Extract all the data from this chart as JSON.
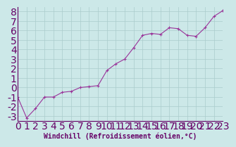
{
  "x": [
    0,
    1,
    2,
    3,
    4,
    5,
    6,
    7,
    8,
    9,
    10,
    11,
    12,
    13,
    14,
    15,
    16,
    17,
    18,
    19,
    20,
    21,
    22,
    23
  ],
  "y": [
    -1.0,
    -3.2,
    -2.2,
    -1.0,
    -1.0,
    -0.5,
    -0.4,
    0.0,
    0.1,
    0.2,
    1.8,
    2.5,
    3.0,
    4.2,
    5.5,
    5.7,
    5.6,
    6.3,
    6.2,
    5.5,
    5.4,
    6.3,
    7.5,
    8.1
  ],
  "line_color": "#993399",
  "marker": "+",
  "marker_color": "#993399",
  "bg_color": "#cce8e8",
  "grid_color": "#aacccc",
  "xlabel": "Windchill (Refroidissement éolien,°C)",
  "xlim": [
    0,
    23
  ],
  "ylim": [
    -3.5,
    8.5
  ],
  "yticks": [
    -3,
    -2,
    -1,
    0,
    1,
    2,
    3,
    4,
    5,
    6,
    7,
    8
  ],
  "xticks": [
    0,
    1,
    2,
    3,
    4,
    5,
    6,
    7,
    8,
    9,
    10,
    11,
    12,
    13,
    14,
    15,
    16,
    17,
    18,
    19,
    20,
    21,
    22,
    23
  ],
  "tick_color": "#660066",
  "axis_color": "#660066",
  "xlabel_fontsize": 7,
  "ytick_fontsize": 6,
  "xtick_fontsize": 5
}
